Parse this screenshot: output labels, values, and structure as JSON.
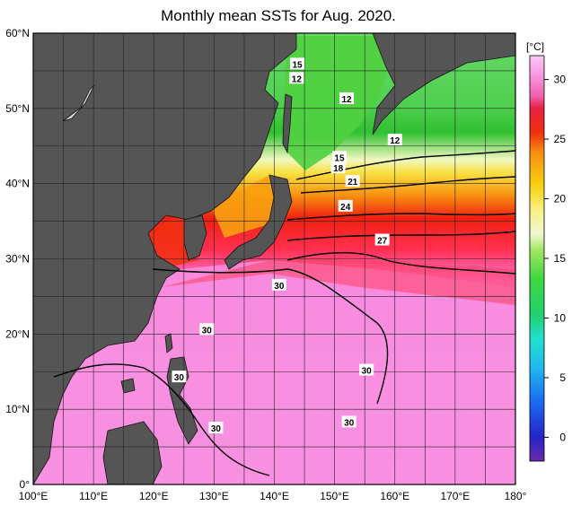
{
  "title": "Monthly mean SSTs for Aug. 2020.",
  "map": {
    "lon_range": [
      100,
      180
    ],
    "lat_range": [
      0,
      60
    ],
    "lat_ticks": [
      "60°N",
      "50°N",
      "40°N",
      "30°N",
      "20°N",
      "10°N",
      "0°"
    ],
    "lon_ticks": [
      "100°E",
      "110°E",
      "120°E",
      "130°E",
      "140°E",
      "150°E",
      "160°E",
      "170°E",
      "180°"
    ],
    "land_color": "#555555",
    "grid_color": "#222222"
  },
  "colorbar": {
    "unit": "[°C]",
    "ticks": [
      "30",
      "25",
      "20",
      "15",
      "10",
      "5",
      "0"
    ],
    "min": -2,
    "max": 32
  },
  "contour_labels": [
    {
      "text": "15",
      "lon": 143.8,
      "lat": 55.9
    },
    {
      "text": "12",
      "lon": 143.7,
      "lat": 54.0
    },
    {
      "text": "12",
      "lon": 152.0,
      "lat": 51.3
    },
    {
      "text": "12",
      "lon": 160.0,
      "lat": 45.8
    },
    {
      "text": "15",
      "lon": 150.8,
      "lat": 43.5
    },
    {
      "text": "18",
      "lon": 150.6,
      "lat": 42.1
    },
    {
      "text": "21",
      "lon": 153.0,
      "lat": 40.3
    },
    {
      "text": "24",
      "lon": 151.8,
      "lat": 37.0
    },
    {
      "text": "27",
      "lon": 157.9,
      "lat": 32.5
    },
    {
      "text": "30",
      "lon": 140.8,
      "lat": 26.5
    },
    {
      "text": "30",
      "lon": 128.8,
      "lat": 20.6
    },
    {
      "text": "30",
      "lon": 124.2,
      "lat": 14.3
    },
    {
      "text": "30",
      "lon": 155.3,
      "lat": 15.2
    },
    {
      "text": "30",
      "lon": 152.4,
      "lat": 8.3
    },
    {
      "text": "30",
      "lon": 130.3,
      "lat": 7.5
    }
  ]
}
